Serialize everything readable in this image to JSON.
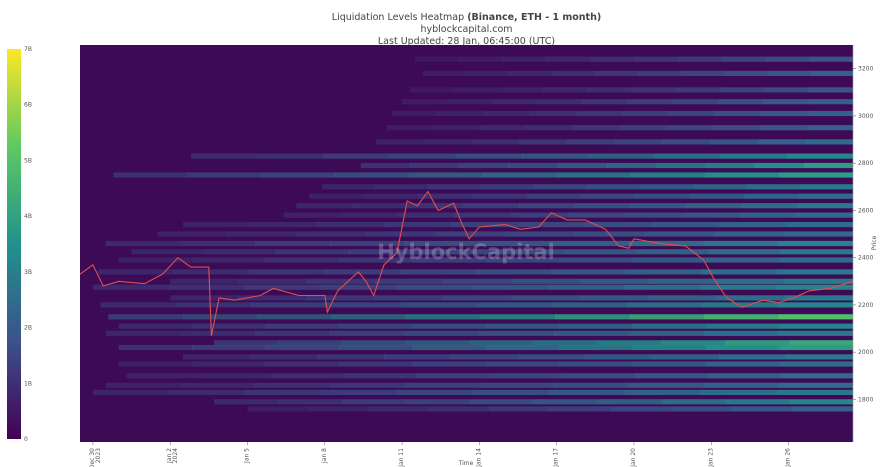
{
  "header": {
    "title": "Liquidation Levels Heatmap",
    "title_bold": "(Binance, ETH - 1 month)",
    "source": "hyblockcapital.com",
    "last_updated": "Last Updated: 28 Jan, 06:45:00 (UTC)"
  },
  "watermark": "HyblockCapital",
  "colors": {
    "background": "#3d0a55",
    "price_line": "#e0504f",
    "viridis": [
      "#440154",
      "#3b528b",
      "#21918c",
      "#5ec962",
      "#fde725"
    ]
  },
  "chart_data": {
    "type": "heatmap",
    "xlabel": "Time",
    "ylabel": "Price",
    "ylim": [
      1620,
      3300
    ],
    "xlim_days": [
      -0.5,
      29.5
    ],
    "y_ticks": [
      1800,
      2000,
      2200,
      2400,
      2600,
      2800,
      3000,
      3200
    ],
    "x_ticks": [
      {
        "label": "Dec 30",
        "label2": "2023",
        "day": 0
      },
      {
        "label": "Jan 2",
        "label2": "2024",
        "day": 3
      },
      {
        "label": "Jan 5",
        "label2": "",
        "day": 6
      },
      {
        "label": "Jan 8",
        "label2": "",
        "day": 9
      },
      {
        "label": "Jan 11",
        "label2": "",
        "day": 12
      },
      {
        "label": "Jan 14",
        "label2": "",
        "day": 15
      },
      {
        "label": "Jan 17",
        "label2": "",
        "day": 18
      },
      {
        "label": "Jan 20",
        "label2": "",
        "day": 21
      },
      {
        "label": "Jan 23",
        "label2": "",
        "day": 24
      },
      {
        "label": "Jan 26",
        "label2": "",
        "day": 27
      }
    ],
    "colorbar": {
      "min": 0,
      "max": 7,
      "tick_values": [
        0,
        1,
        2,
        3,
        4,
        5,
        6,
        7
      ],
      "tick_labels": [
        "0",
        "1B",
        "2B",
        "3B",
        "4B",
        "5B",
        "6B",
        "7B"
      ]
    },
    "price_series": [
      {
        "day": -0.5,
        "price": 2330
      },
      {
        "day": 0.0,
        "price": 2370
      },
      {
        "day": 0.4,
        "price": 2280
      },
      {
        "day": 1.0,
        "price": 2300
      },
      {
        "day": 2.0,
        "price": 2290
      },
      {
        "day": 2.7,
        "price": 2330
      },
      {
        "day": 3.3,
        "price": 2400
      },
      {
        "day": 3.8,
        "price": 2360
      },
      {
        "day": 4.5,
        "price": 2360
      },
      {
        "day": 4.6,
        "price": 2070
      },
      {
        "day": 4.9,
        "price": 2230
      },
      {
        "day": 5.5,
        "price": 2220
      },
      {
        "day": 6.5,
        "price": 2240
      },
      {
        "day": 7.0,
        "price": 2270
      },
      {
        "day": 8.0,
        "price": 2240
      },
      {
        "day": 9.0,
        "price": 2240
      },
      {
        "day": 9.1,
        "price": 2170
      },
      {
        "day": 9.5,
        "price": 2260
      },
      {
        "day": 10.3,
        "price": 2340
      },
      {
        "day": 10.6,
        "price": 2300
      },
      {
        "day": 10.9,
        "price": 2240
      },
      {
        "day": 11.3,
        "price": 2370
      },
      {
        "day": 11.8,
        "price": 2420
      },
      {
        "day": 12.2,
        "price": 2640
      },
      {
        "day": 12.6,
        "price": 2620
      },
      {
        "day": 13.0,
        "price": 2680
      },
      {
        "day": 13.4,
        "price": 2600
      },
      {
        "day": 14.0,
        "price": 2630
      },
      {
        "day": 14.3,
        "price": 2550
      },
      {
        "day": 14.6,
        "price": 2480
      },
      {
        "day": 15.0,
        "price": 2530
      },
      {
        "day": 16.0,
        "price": 2540
      },
      {
        "day": 16.6,
        "price": 2520
      },
      {
        "day": 17.3,
        "price": 2530
      },
      {
        "day": 17.8,
        "price": 2590
      },
      {
        "day": 18.4,
        "price": 2560
      },
      {
        "day": 19.1,
        "price": 2560
      },
      {
        "day": 19.9,
        "price": 2520
      },
      {
        "day": 20.4,
        "price": 2450
      },
      {
        "day": 20.8,
        "price": 2440
      },
      {
        "day": 21.0,
        "price": 2480
      },
      {
        "day": 22.0,
        "price": 2460
      },
      {
        "day": 23.0,
        "price": 2450
      },
      {
        "day": 23.7,
        "price": 2390
      },
      {
        "day": 24.1,
        "price": 2310
      },
      {
        "day": 24.6,
        "price": 2230
      },
      {
        "day": 25.2,
        "price": 2190
      },
      {
        "day": 26.0,
        "price": 2220
      },
      {
        "day": 26.6,
        "price": 2210
      },
      {
        "day": 27.2,
        "price": 2230
      },
      {
        "day": 27.8,
        "price": 2260
      },
      {
        "day": 28.6,
        "price": 2270
      },
      {
        "day": 29.5,
        "price": 2300
      }
    ],
    "liquidation_bands": [
      {
        "price": 3240,
        "start_day": 12.5,
        "intensity": 0.25
      },
      {
        "price": 3180,
        "start_day": 12.8,
        "intensity": 0.3
      },
      {
        "price": 3110,
        "start_day": 12.3,
        "intensity": 0.25
      },
      {
        "price": 3060,
        "start_day": 12.0,
        "intensity": 0.3
      },
      {
        "price": 3010,
        "start_day": 11.6,
        "intensity": 0.3
      },
      {
        "price": 2950,
        "start_day": 11.4,
        "intensity": 0.3
      },
      {
        "price": 2890,
        "start_day": 11.0,
        "intensity": 0.35
      },
      {
        "price": 2830,
        "start_day": 3.8,
        "intensity": 0.45
      },
      {
        "price": 2790,
        "start_day": 10.4,
        "intensity": 0.55
      },
      {
        "price": 2750,
        "start_day": 0.8,
        "intensity": 0.55
      },
      {
        "price": 2700,
        "start_day": 8.9,
        "intensity": 0.4
      },
      {
        "price": 2660,
        "start_day": 8.4,
        "intensity": 0.35
      },
      {
        "price": 2620,
        "start_day": 7.9,
        "intensity": 0.4
      },
      {
        "price": 2580,
        "start_day": 7.4,
        "intensity": 0.35
      },
      {
        "price": 2540,
        "start_day": 3.5,
        "intensity": 0.35
      },
      {
        "price": 2500,
        "start_day": 2.5,
        "intensity": 0.35
      },
      {
        "price": 2460,
        "start_day": 0.5,
        "intensity": 0.45
      },
      {
        "price": 2425,
        "start_day": 1.5,
        "intensity": 0.4
      },
      {
        "price": 2390,
        "start_day": 1.0,
        "intensity": 0.35
      },
      {
        "price": 2340,
        "start_day": 0.2,
        "intensity": 0.4
      },
      {
        "price": 2300,
        "start_day": 3.0,
        "intensity": 0.4
      },
      {
        "price": 2275,
        "start_day": 0.0,
        "intensity": 0.45
      },
      {
        "price": 2230,
        "start_day": 3.0,
        "intensity": 0.4
      },
      {
        "price": 2200,
        "start_day": 0.3,
        "intensity": 0.45
      },
      {
        "price": 2150,
        "start_day": 0.6,
        "intensity": 0.7
      },
      {
        "price": 2110,
        "start_day": 1.0,
        "intensity": 0.45
      },
      {
        "price": 2080,
        "start_day": 0.5,
        "intensity": 0.4
      },
      {
        "price": 2040,
        "start_day": 4.7,
        "intensity": 0.6
      },
      {
        "price": 2020,
        "start_day": 1.0,
        "intensity": 0.55
      },
      {
        "price": 1980,
        "start_day": 3.5,
        "intensity": 0.4
      },
      {
        "price": 1950,
        "start_day": 1.0,
        "intensity": 0.35
      },
      {
        "price": 1900,
        "start_day": 1.3,
        "intensity": 0.35
      },
      {
        "price": 1860,
        "start_day": 0.5,
        "intensity": 0.35
      },
      {
        "price": 1830,
        "start_day": 0.0,
        "intensity": 0.4
      },
      {
        "price": 1790,
        "start_day": 4.7,
        "intensity": 0.45
      },
      {
        "price": 1760,
        "start_day": 6.0,
        "intensity": 0.3
      }
    ]
  }
}
